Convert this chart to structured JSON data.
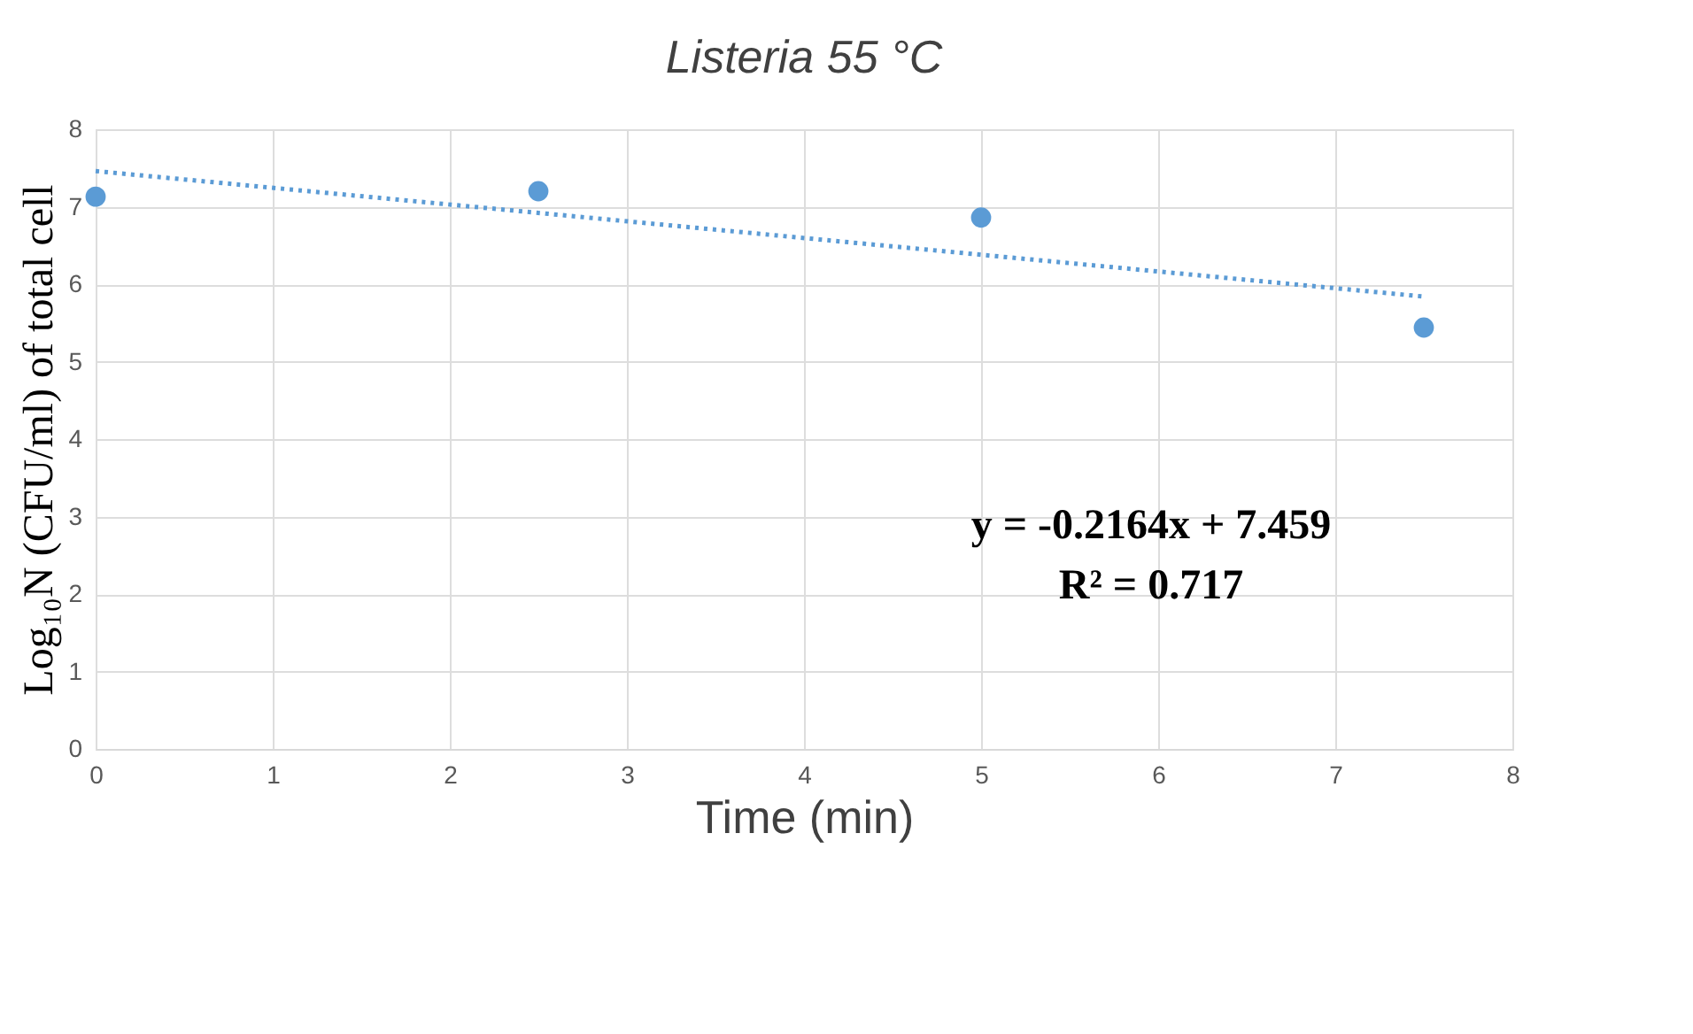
{
  "chart_data": {
    "type": "scatter",
    "title": "Listeria 55 °C",
    "xlabel": "Time (min)",
    "ylabel": "Log₁₀N (CFU/ml) of total cell",
    "x": [
      0,
      2.5,
      5,
      7.5
    ],
    "series": [
      {
        "color": "#5b9bd5",
        "marker": "circle",
        "values": [
          7.13,
          7.2,
          6.86,
          5.44
        ]
      },
      {
        "type": "line",
        "color": "#5b9bd5",
        "line_style": "dotted",
        "x": [
          0,
          7.5
        ],
        "values": [
          7.46,
          5.84
        ]
      }
    ],
    "annotations": [
      "y = -0.2164x + 7.459",
      "R² = 0.717"
    ],
    "xlim": [
      0,
      8
    ],
    "xticks": [
      0,
      1,
      2,
      3,
      4,
      5,
      6,
      7,
      8
    ],
    "ylim": [
      0,
      8
    ],
    "yticks": [
      0,
      1,
      2,
      3,
      4,
      5,
      6,
      7,
      8
    ],
    "grid": true
  }
}
